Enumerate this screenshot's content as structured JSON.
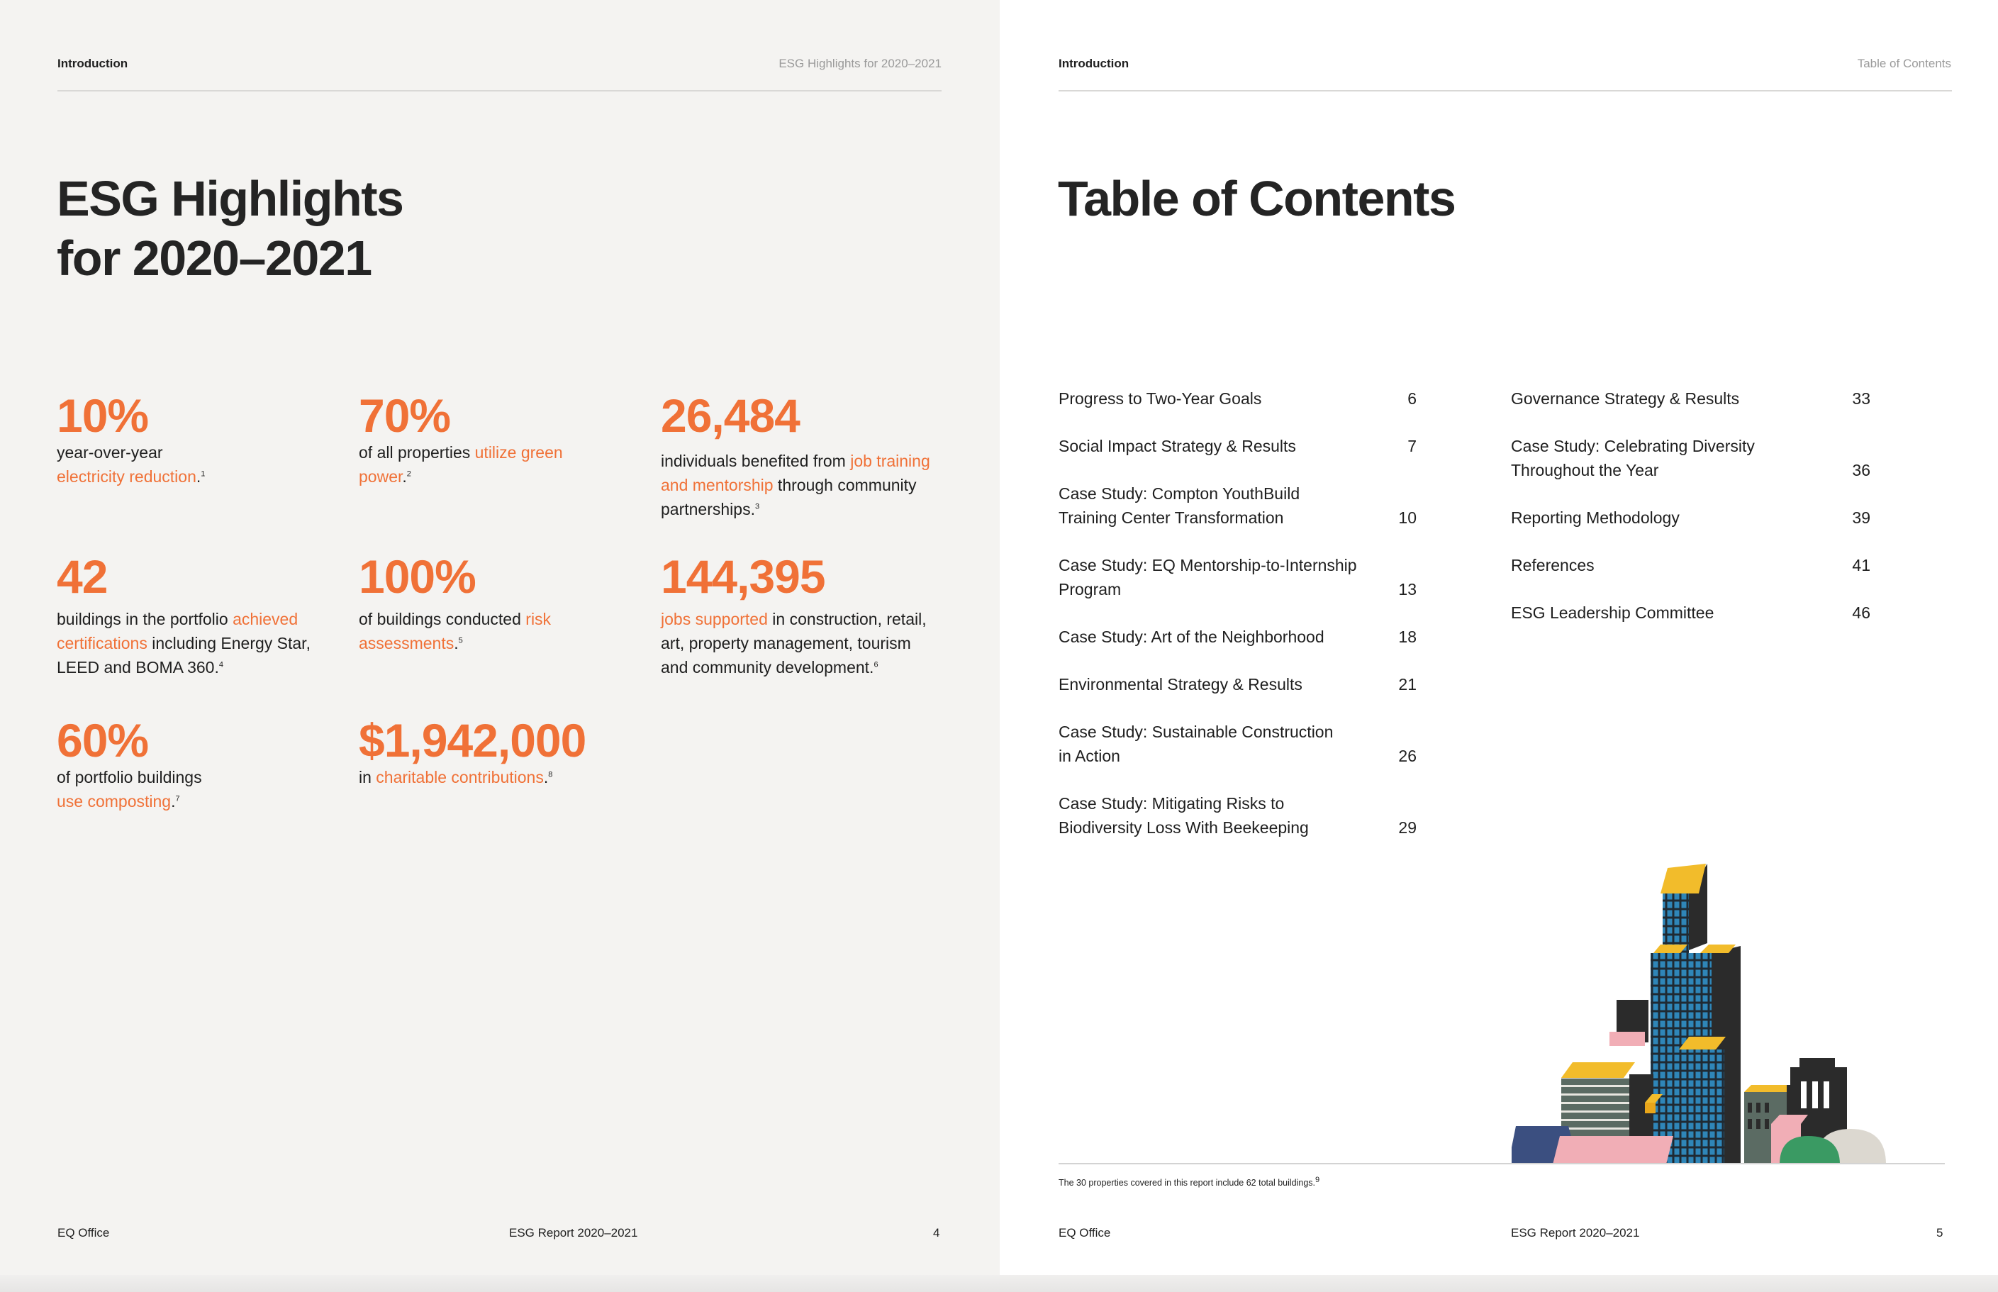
{
  "left_page": {
    "header_left": "Introduction",
    "header_right": "ESG Highlights for 2020–2021",
    "title_line1": "ESG Highlights",
    "title_line2": "for 2020–2021",
    "stats": [
      {
        "value": "10%",
        "pre": "year-over-year",
        "highlight": "electricity reduction",
        "post": ".",
        "sup": "1"
      },
      {
        "value": "70%",
        "pre": "of all properties ",
        "highlight": "utilize green power",
        "post": ".",
        "sup": "2"
      },
      {
        "value": "26,484",
        "pre": "individuals benefited from ",
        "highlight": "job training and mentorship",
        "post": " through community partnerships.",
        "sup": "3"
      },
      {
        "value": "42",
        "pre": "buildings in the portfolio ",
        "highlight": "achieved certifications",
        "post": " including Energy Star, LEED and BOMA 360.",
        "sup": "4"
      },
      {
        "value": "100%",
        "pre": "of buildings conducted ",
        "highlight": "risk assessments",
        "post": ".",
        "sup": "5"
      },
      {
        "value": "144,395",
        "pre": "",
        "highlight": "jobs supported",
        "post": " in construction, retail, art, property management, tourism and community development.",
        "sup": "6"
      },
      {
        "value": "60%",
        "pre": "of portfolio buildings",
        "highlight": "use composting",
        "post": ".",
        "sup": "7"
      },
      {
        "value": "$1,942,000",
        "pre": "in ",
        "highlight": "charitable contributions",
        "post": ".",
        "sup": "8"
      }
    ],
    "footer_left": "EQ Office",
    "footer_center": "ESG Report 2020–2021",
    "footer_page": "4"
  },
  "right_page": {
    "header_left": "Introduction",
    "header_right": "Table of Contents",
    "title": "Table of Contents",
    "toc_left": [
      {
        "l1": "Progress to Two-Year Goals",
        "l2": "",
        "page": "6"
      },
      {
        "l1": "Social Impact Strategy & Results",
        "l2": "",
        "page": "7"
      },
      {
        "l1": "Case Study: Compton YouthBuild",
        "l2": "Training Center Transformation",
        "page": "10"
      },
      {
        "l1": "Case Study: EQ Mentorship-to-Internship",
        "l2": "Program",
        "page": "13"
      },
      {
        "l1": "Case Study: Art of the Neighborhood",
        "l2": "",
        "page": "18"
      },
      {
        "l1": "Environmental Strategy & Results",
        "l2": "",
        "page": "21"
      },
      {
        "l1": "Case Study: Sustainable Construction",
        "l2": "in Action",
        "page": "26"
      },
      {
        "l1": "Case Study: Mitigating Risks to",
        "l2": "Biodiversity Loss With Beekeeping",
        "page": "29"
      }
    ],
    "toc_right": [
      {
        "l1": "Governance Strategy & Results",
        "l2": "",
        "page": "33"
      },
      {
        "l1": "Case Study: Celebrating Diversity",
        "l2": "Throughout the Year",
        "page": "36"
      },
      {
        "l1": "Reporting Methodology",
        "l2": "",
        "page": "39"
      },
      {
        "l1": "References",
        "l2": "",
        "page": "41"
      },
      {
        "l1": "ESG Leadership Committee",
        "l2": "",
        "page": "46"
      }
    ],
    "footnote": "The 30 properties covered in this report include 62 total buildings.",
    "footnote_sup": "9",
    "footer_left": "EQ Office",
    "footer_center": "ESG Report 2020–2021",
    "footer_page": "5"
  },
  "colors": {
    "accent": "#f07137",
    "left_bg": "#f4f3f1",
    "building_blue": "#2f86b8",
    "building_yellow": "#f2bc2b",
    "building_dark": "#2b2b2b",
    "building_pink": "#f1aeb6",
    "building_green": "#3a9a63",
    "building_navy": "#3b4f80"
  },
  "icons": [
    "city-buildings-illustration"
  ]
}
